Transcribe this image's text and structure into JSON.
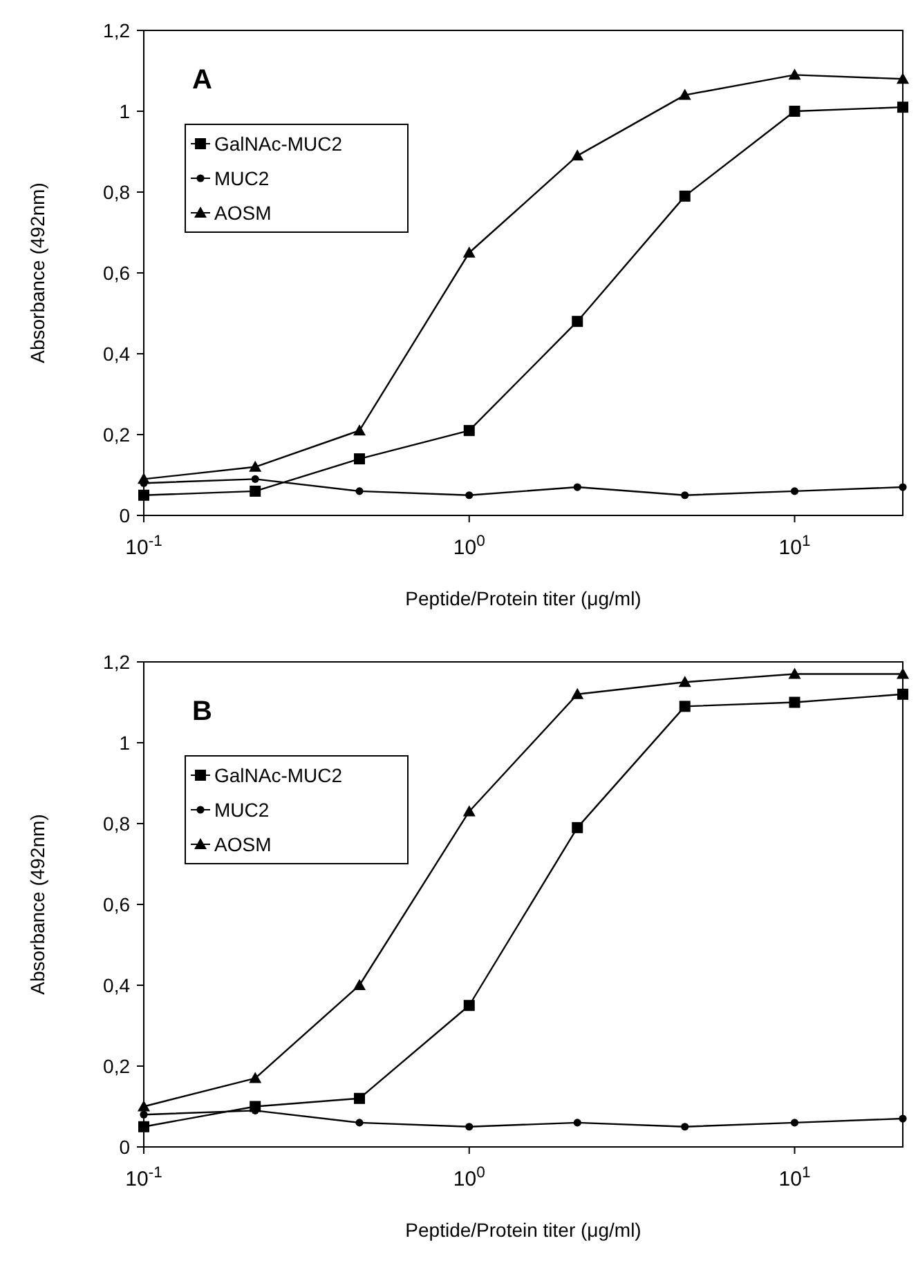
{
  "chart_data": [
    {
      "type": "line",
      "title": "A",
      "xlabel": "Peptide/Protein titer (μg/ml)",
      "ylabel": "Absorbance (492nm)",
      "log": "x",
      "x": [
        0.1,
        0.22,
        0.46,
        1,
        2.15,
        4.6,
        10,
        21.5
      ],
      "xlim": [
        0.1,
        21.5
      ],
      "xticks": [
        {
          "value": 0.1,
          "label": "10$^{-1}$"
        },
        {
          "value": 1,
          "label": "10$^{0}$"
        },
        {
          "value": 10,
          "label": "10$^{1}$"
        }
      ],
      "ylim": [
        0,
        1.2
      ],
      "yticks": [
        {
          "value": 0,
          "label": "0"
        },
        {
          "value": 0.2,
          "label": "0,2"
        },
        {
          "value": 0.4,
          "label": "0,4"
        },
        {
          "value": 0.6,
          "label": "0,6"
        },
        {
          "value": 0.8,
          "label": "0,8"
        },
        {
          "value": 1,
          "label": "1"
        },
        {
          "value": 1.2,
          "label": "1,2"
        }
      ],
      "grid": false,
      "legend": "top left",
      "series": [
        {
          "name": "GalNAc-MUC2",
          "color": "#000000",
          "marker": "square",
          "values": [
            0.05,
            0.06,
            0.14,
            0.21,
            0.48,
            0.79,
            1.0,
            1.01
          ]
        },
        {
          "name": "MUC2",
          "color": "#000000",
          "marker": "circle",
          "values": [
            0.08,
            0.09,
            0.06,
            0.05,
            0.07,
            0.05,
            0.06,
            0.07
          ]
        },
        {
          "name": "AOSM",
          "color": "#000000",
          "marker": "triangle",
          "values": [
            0.09,
            0.12,
            0.21,
            0.65,
            0.89,
            1.04,
            1.09,
            1.08
          ]
        }
      ]
    },
    {
      "type": "line",
      "title": "B",
      "xlabel": "Peptide/Protein titer (μg/ml)",
      "ylabel": "Absorbance (492nm)",
      "log": "x",
      "x": [
        0.1,
        0.22,
        0.46,
        1,
        2.15,
        4.6,
        10,
        21.5
      ],
      "xlim": [
        0.1,
        21.5
      ],
      "xticks": [
        {
          "value": 0.1,
          "label": "10$^{-1}$"
        },
        {
          "value": 1,
          "label": "10$^{0}$"
        },
        {
          "value": 10,
          "label": "10$^{1}$"
        }
      ],
      "ylim": [
        0,
        1.2
      ],
      "yticks": [
        {
          "value": 0,
          "label": "0"
        },
        {
          "value": 0.2,
          "label": "0,2"
        },
        {
          "value": 0.4,
          "label": "0,4"
        },
        {
          "value": 0.6,
          "label": "0,6"
        },
        {
          "value": 0.8,
          "label": "0,8"
        },
        {
          "value": 1,
          "label": "1"
        },
        {
          "value": 1.2,
          "label": "1,2"
        }
      ],
      "grid": false,
      "legend": "top left",
      "series": [
        {
          "name": "GalNAc-MUC2",
          "color": "#000000",
          "marker": "square",
          "values": [
            0.05,
            0.1,
            0.12,
            0.35,
            0.79,
            1.09,
            1.1,
            1.12
          ]
        },
        {
          "name": "MUC2",
          "color": "#000000",
          "marker": "circle",
          "values": [
            0.08,
            0.09,
            0.06,
            0.05,
            0.06,
            0.05,
            0.06,
            0.07
          ]
        },
        {
          "name": "AOSM",
          "color": "#000000",
          "marker": "triangle",
          "values": [
            0.1,
            0.17,
            0.4,
            0.83,
            1.12,
            1.15,
            1.17,
            1.17
          ]
        }
      ]
    }
  ]
}
